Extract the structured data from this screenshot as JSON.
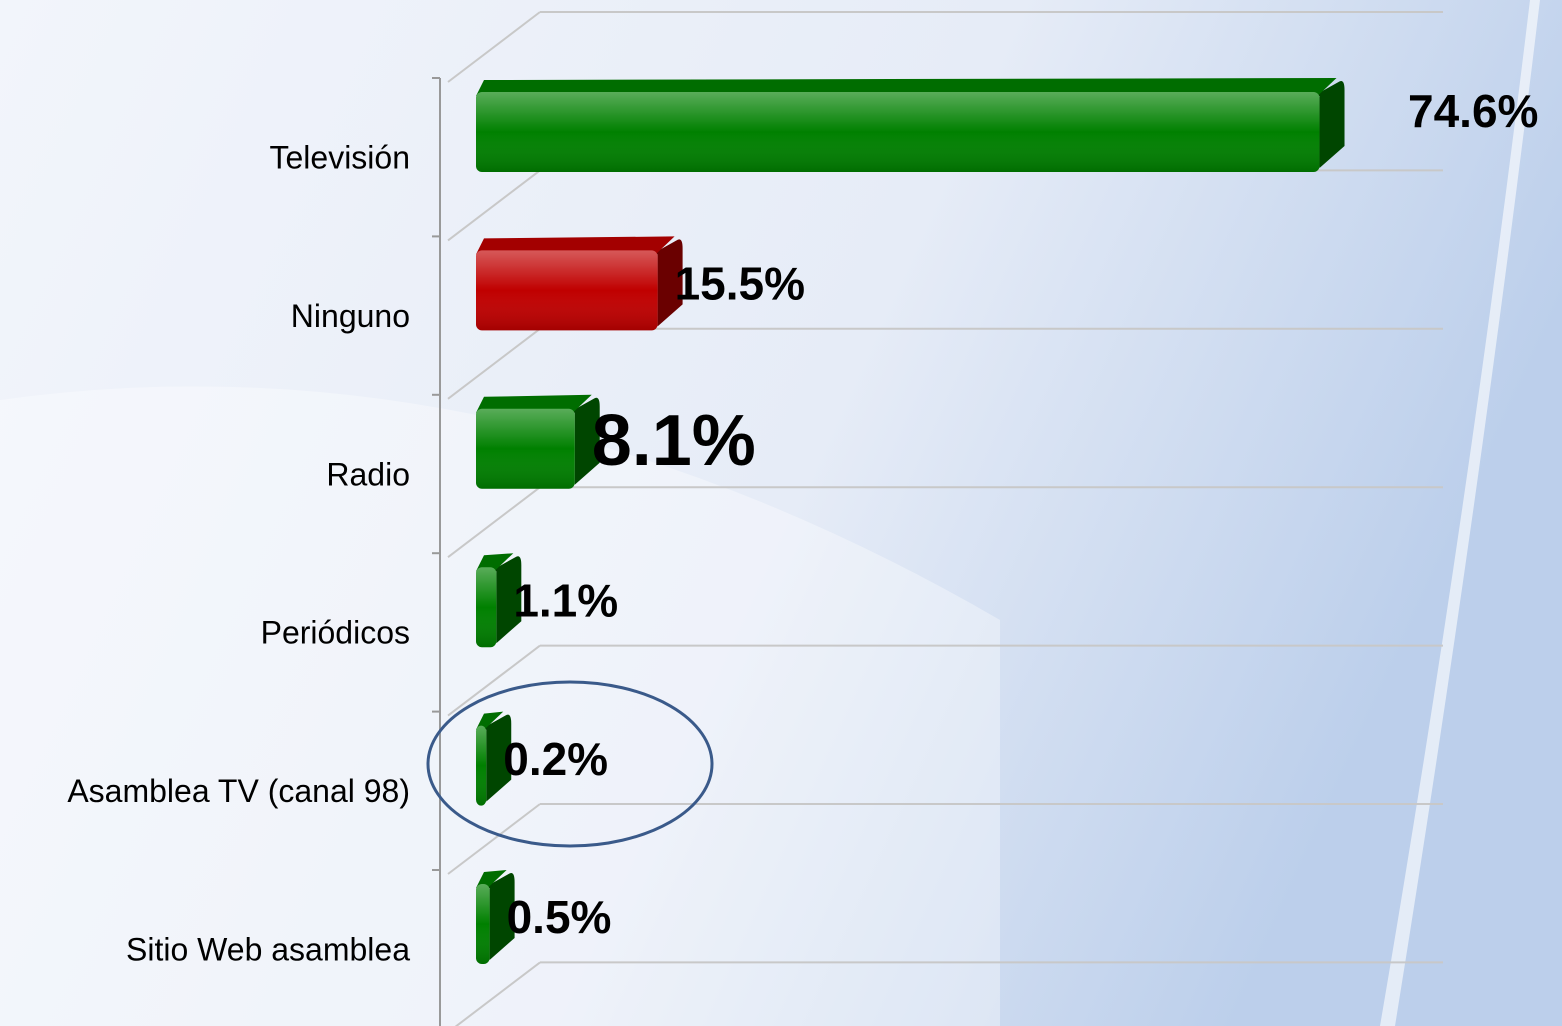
{
  "chart_data": {
    "type": "bar",
    "categories": [
      "Televisión",
      "Ninguno",
      "Radio",
      "Periódicos",
      "Asamblea TV (canal 98)",
      "Sitio Web asamblea"
    ],
    "values": [
      74.6,
      15.5,
      8.1,
      1.1,
      0.2,
      0.5
    ],
    "value_labels": [
      "74.6%",
      "15.5%",
      "8.1%",
      "1.1%",
      "0.2%",
      "0.5%"
    ],
    "colors": [
      "#008000",
      "#c00000",
      "#008000",
      "#008000",
      "#008000",
      "#008000"
    ],
    "orientation": "horizontal",
    "grid": true
  }
}
